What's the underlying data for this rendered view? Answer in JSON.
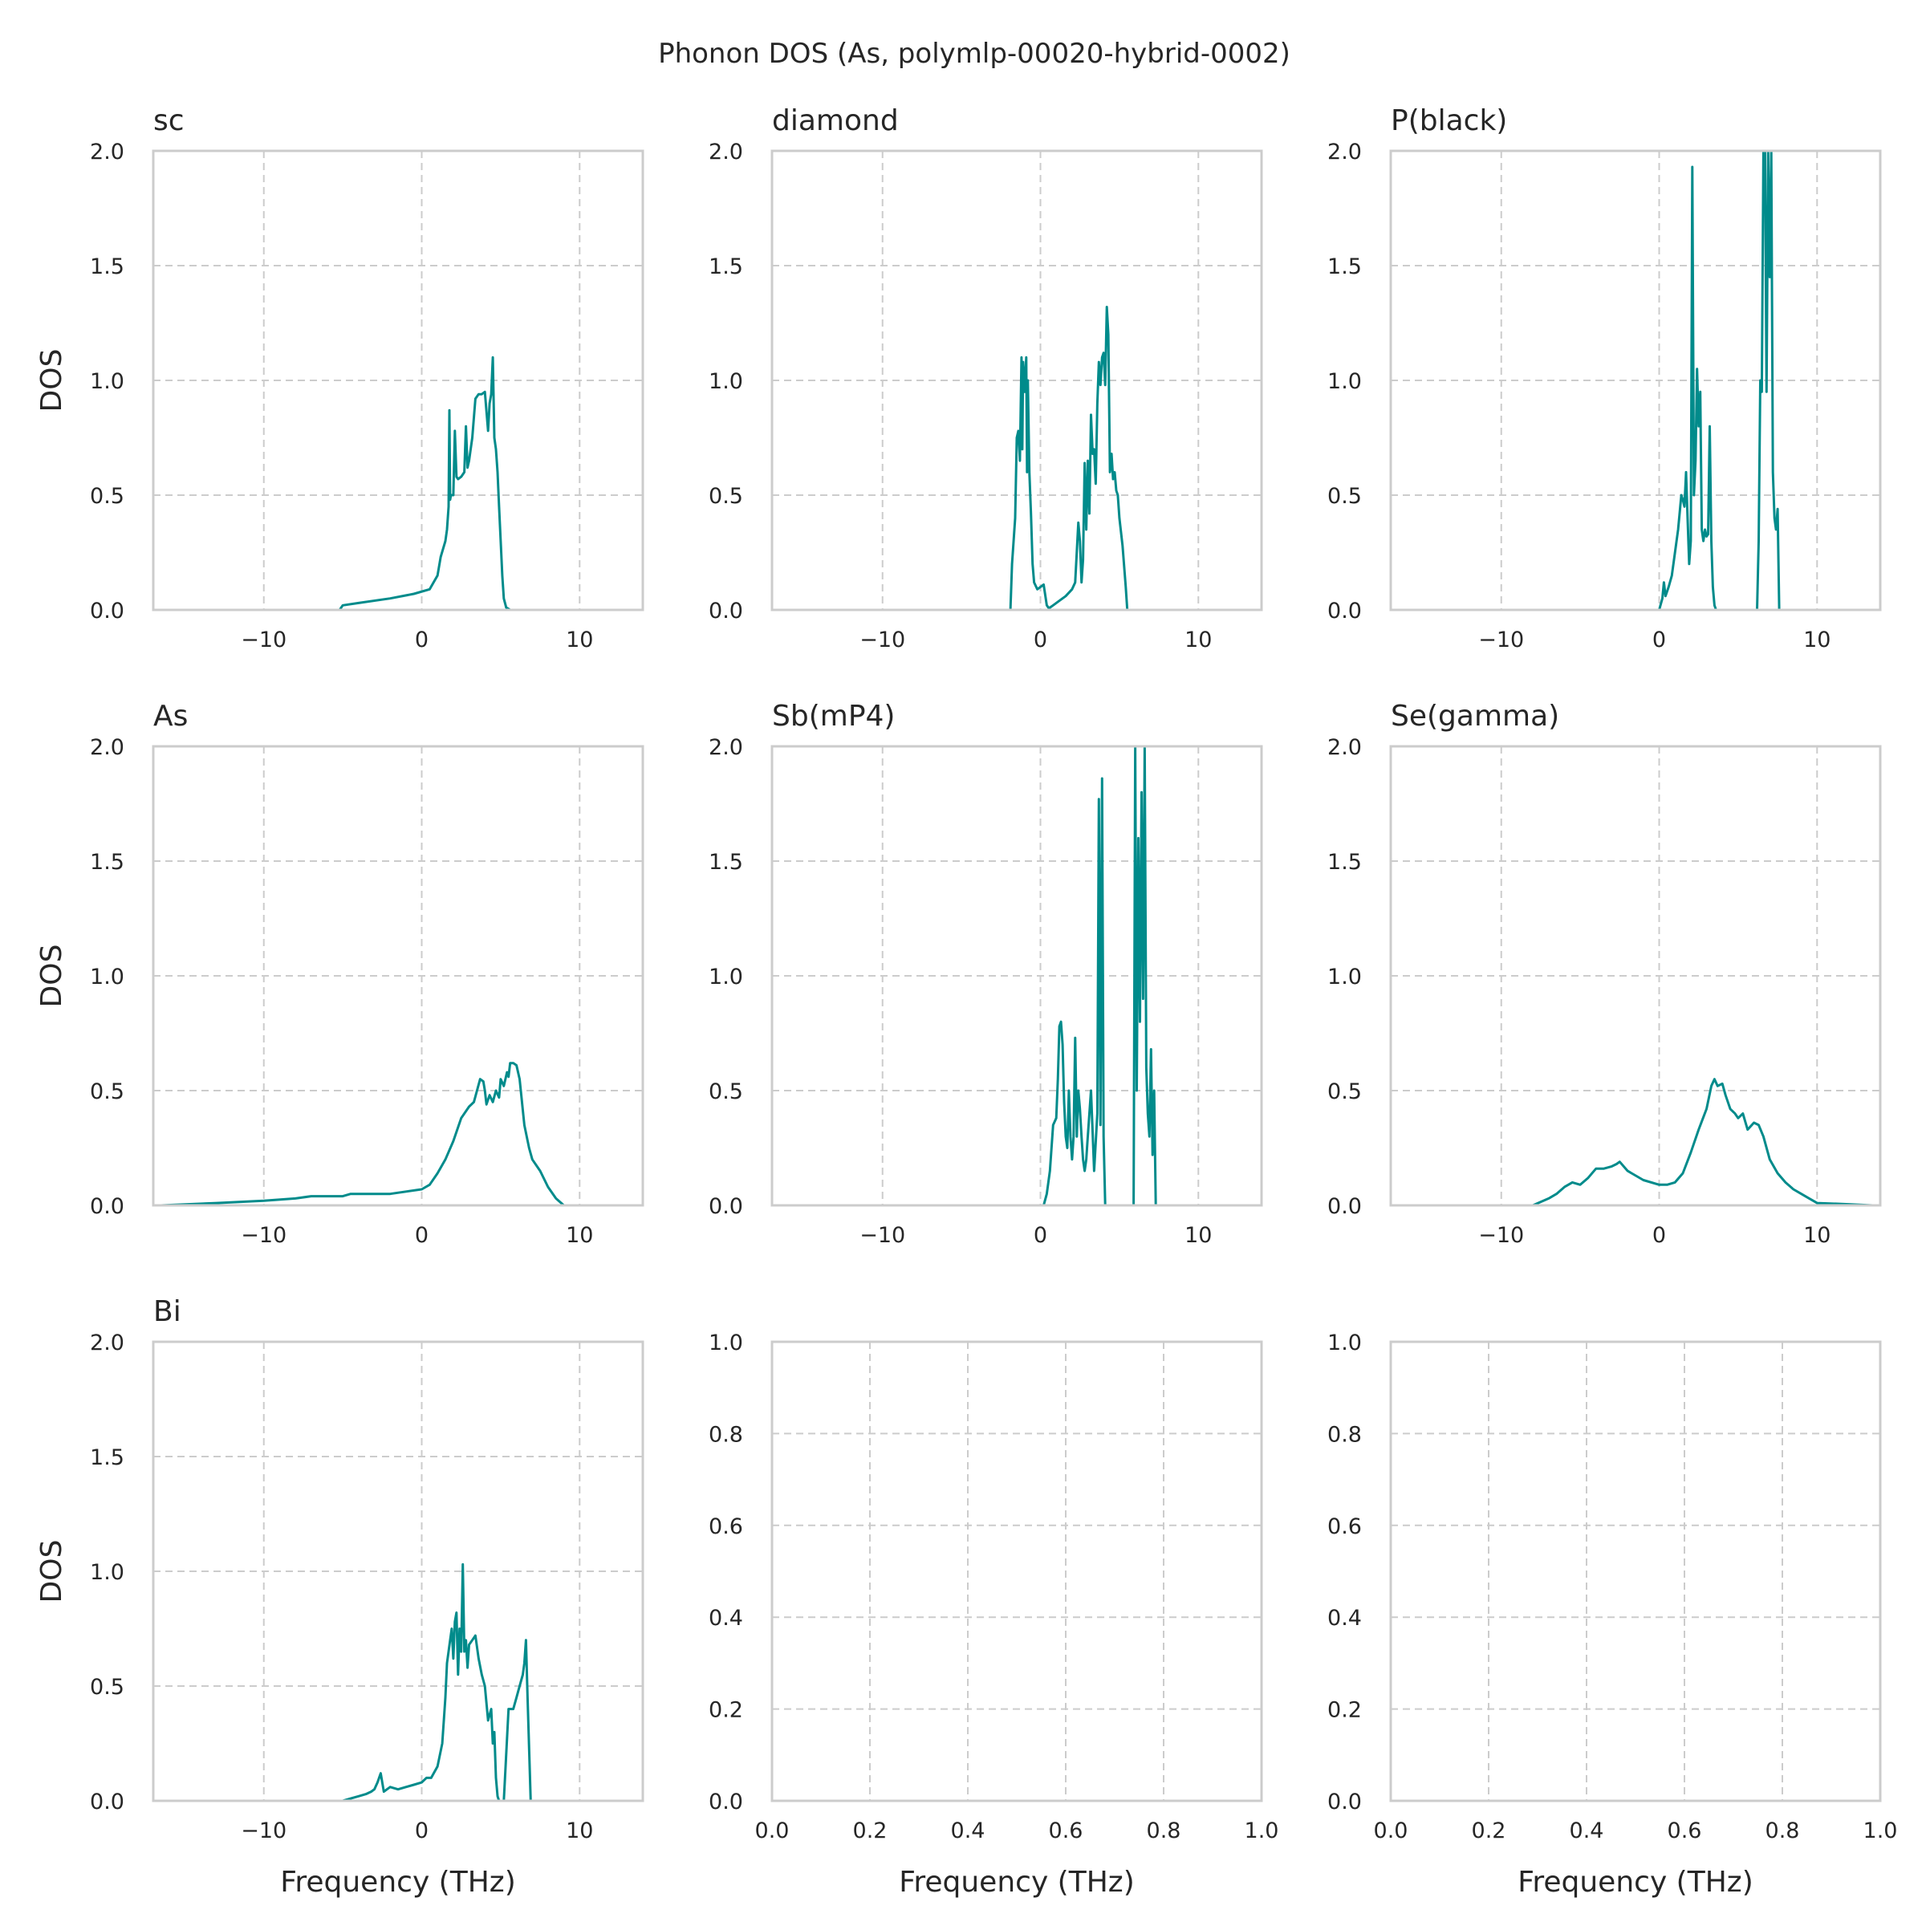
{
  "figure": {
    "title": "Phonon DOS (As, polymlp-00020-hybrid-0002)",
    "line_color": "#008b8b",
    "grid_color": "#cccccc",
    "frame_color": "#cccccc"
  },
  "chart_data": [
    {
      "type": "line",
      "title": "sc",
      "xlabel": "",
      "ylabel": "DOS",
      "xlim": [
        -17,
        14
      ],
      "ylim": [
        0,
        2.0
      ],
      "xticks": [
        -10,
        0,
        10
      ],
      "xtick_labels": [
        "−10",
        "0",
        "10"
      ],
      "yticks": [
        0,
        0.5,
        1.0,
        1.5,
        2.0
      ],
      "ytick_labels": [
        "0.0",
        "0.5",
        "1.0",
        "1.5",
        "2.0"
      ],
      "grid": true,
      "series": [
        {
          "x": [
            -6.2,
            -5.2,
            -5.0,
            -4.0,
            -2.0,
            -0.5,
            0.5,
            1.0,
            1.2,
            1.5,
            1.6,
            1.7,
            1.75,
            1.8,
            1.85,
            2.0,
            2.1,
            2.2,
            2.3,
            2.5,
            2.7,
            2.8,
            2.9,
            3.0,
            3.2,
            3.4,
            3.6,
            3.8,
            4.0,
            4.2,
            4.3,
            4.4,
            4.5,
            4.6,
            4.7,
            4.8,
            4.9,
            5.0,
            5.1,
            5.2,
            5.35,
            5.6,
            6.5
          ],
          "y": [
            0.0,
            0.0,
            0.02,
            0.03,
            0.05,
            0.07,
            0.09,
            0.15,
            0.23,
            0.3,
            0.35,
            0.45,
            0.87,
            0.48,
            0.5,
            0.5,
            0.78,
            0.58,
            0.57,
            0.58,
            0.6,
            0.8,
            0.62,
            0.65,
            0.75,
            0.92,
            0.94,
            0.94,
            0.95,
            0.78,
            0.9,
            0.94,
            1.1,
            0.75,
            0.7,
            0.6,
            0.45,
            0.3,
            0.15,
            0.05,
            0.01,
            0.0,
            0.0
          ]
        }
      ]
    },
    {
      "type": "line",
      "title": "diamond",
      "xlabel": "",
      "ylabel": "",
      "xlim": [
        -17,
        14
      ],
      "ylim": [
        0,
        2.0
      ],
      "xticks": [
        -10,
        0,
        10
      ],
      "xtick_labels": [
        "−10",
        "0",
        "10"
      ],
      "yticks": [
        0,
        0.5,
        1.0,
        1.5,
        2.0
      ],
      "ytick_labels": [
        "0.0",
        "0.5",
        "1.0",
        "1.5",
        "2.0"
      ],
      "grid": true,
      "series": [
        {
          "x": [
            -2.5,
            -1.9,
            -1.8,
            -1.6,
            -1.5,
            -1.4,
            -1.3,
            -1.2,
            -1.15,
            -1.1,
            -1.0,
            -0.9,
            -0.85,
            -0.8,
            -0.7,
            -0.6,
            -0.5,
            -0.4,
            -0.2,
            0.0,
            0.2,
            0.4,
            0.5,
            0.6,
            0.8,
            1.2,
            1.6,
            2.0,
            2.2,
            2.4,
            2.5,
            2.6,
            2.7,
            2.8,
            2.9,
            3.0,
            3.1,
            3.2,
            3.3,
            3.4,
            3.5,
            3.6,
            3.7,
            3.8,
            3.9,
            4.0,
            4.1,
            4.2,
            4.3,
            4.4,
            4.5,
            4.6,
            4.7,
            4.8,
            4.9,
            5.0,
            5.2,
            5.4,
            5.5,
            6.0
          ],
          "y": [
            0.0,
            0.0,
            0.2,
            0.4,
            0.75,
            0.78,
            0.65,
            1.1,
            0.7,
            1.08,
            0.95,
            1.1,
            0.6,
            1.0,
            0.6,
            0.42,
            0.2,
            0.12,
            0.09,
            0.1,
            0.11,
            0.02,
            0.01,
            0.01,
            0.02,
            0.04,
            0.06,
            0.09,
            0.12,
            0.38,
            0.3,
            0.12,
            0.22,
            0.64,
            0.35,
            0.65,
            0.42,
            0.85,
            0.68,
            0.7,
            0.55,
            0.9,
            1.08,
            0.98,
            1.1,
            1.12,
            0.98,
            1.32,
            1.2,
            0.6,
            0.68,
            0.57,
            0.6,
            0.52,
            0.5,
            0.4,
            0.28,
            0.1,
            0.0,
            0.0
          ]
        }
      ]
    },
    {
      "type": "line",
      "title": "P(black)",
      "xlabel": "",
      "ylabel": "",
      "xlim": [
        -17,
        14
      ],
      "ylim": [
        0,
        2.0
      ],
      "xticks": [
        -10,
        0,
        10
      ],
      "xtick_labels": [
        "−10",
        "0",
        "10"
      ],
      "yticks": [
        0,
        0.5,
        1.0,
        1.5,
        2.0
      ],
      "ytick_labels": [
        "0.0",
        "0.5",
        "1.0",
        "1.5",
        "2.0"
      ],
      "grid": true,
      "series": [
        {
          "x": [
            -0.5,
            0.0,
            0.2,
            0.3,
            0.4,
            0.6,
            0.8,
            1.0,
            1.2,
            1.4,
            1.5,
            1.6,
            1.7,
            1.8,
            1.9,
            2.0,
            2.1,
            2.2,
            2.3,
            2.4,
            2.5,
            2.6,
            2.7,
            2.8,
            2.9,
            3.0,
            3.1,
            3.2,
            3.3,
            3.4,
            3.5,
            3.6,
            3.7,
            3.8,
            4.0,
            6.0,
            6.1,
            6.2,
            6.3,
            6.4,
            6.5,
            6.6,
            6.7,
            6.8,
            6.9,
            7.0,
            7.1,
            7.2,
            7.3,
            7.4,
            7.5,
            7.6,
            8.0
          ],
          "y": [
            0.0,
            0.0,
            0.05,
            0.12,
            0.06,
            0.1,
            0.15,
            0.25,
            0.35,
            0.5,
            0.48,
            0.45,
            0.6,
            0.4,
            0.2,
            0.3,
            1.93,
            0.5,
            0.65,
            1.05,
            0.8,
            0.95,
            0.35,
            0.3,
            0.35,
            0.32,
            0.33,
            0.8,
            0.3,
            0.1,
            0.02,
            0.0,
            0.0,
            0.0,
            0.0,
            0.0,
            0.0,
            0.0,
            0.3,
            1.0,
            0.95,
            2.0,
            2.0,
            0.95,
            2.0,
            1.45,
            2.0,
            0.6,
            0.4,
            0.35,
            0.44,
            0.0,
            0.0
          ]
        }
      ]
    },
    {
      "type": "line",
      "title": "As",
      "xlabel": "",
      "ylabel": "DOS",
      "xlim": [
        -17,
        14
      ],
      "ylim": [
        0,
        2.0
      ],
      "xticks": [
        -10,
        0,
        10
      ],
      "xtick_labels": [
        "−10",
        "0",
        "10"
      ],
      "yticks": [
        0,
        0.5,
        1.0,
        1.5,
        2.0
      ],
      "ytick_labels": [
        "0.0",
        "0.5",
        "1.0",
        "1.5",
        "2.0"
      ],
      "grid": true,
      "series": [
        {
          "x": [
            -16.5,
            -13.0,
            -10.0,
            -8.0,
            -7.0,
            -5.0,
            -4.5,
            -4.0,
            -2.0,
            0.0,
            0.5,
            1.0,
            1.5,
            2.0,
            2.5,
            3.0,
            3.3,
            3.5,
            3.7,
            3.9,
            4.0,
            4.1,
            4.3,
            4.5,
            4.7,
            4.9,
            5.0,
            5.2,
            5.4,
            5.5,
            5.6,
            5.8,
            6.0,
            6.2,
            6.5,
            6.8,
            7.0,
            7.5,
            8.0,
            8.5,
            9.0,
            11.0
          ],
          "y": [
            0.0,
            0.01,
            0.02,
            0.03,
            0.04,
            0.04,
            0.05,
            0.05,
            0.05,
            0.07,
            0.09,
            0.14,
            0.2,
            0.28,
            0.38,
            0.43,
            0.45,
            0.5,
            0.55,
            0.54,
            0.5,
            0.44,
            0.48,
            0.45,
            0.5,
            0.47,
            0.55,
            0.52,
            0.58,
            0.56,
            0.62,
            0.62,
            0.61,
            0.55,
            0.35,
            0.25,
            0.2,
            0.15,
            0.08,
            0.03,
            0.0,
            0.0
          ]
        }
      ]
    },
    {
      "type": "line",
      "title": "Sb(mP4)",
      "xlabel": "",
      "ylabel": "",
      "xlim": [
        -17,
        14
      ],
      "ylim": [
        0,
        2.0
      ],
      "xticks": [
        -10,
        0,
        10
      ],
      "xtick_labels": [
        "−10",
        "0",
        "10"
      ],
      "yticks": [
        0,
        0.5,
        1.0,
        1.5,
        2.0
      ],
      "ytick_labels": [
        "0.0",
        "0.5",
        "1.0",
        "1.5",
        "2.0"
      ],
      "grid": true,
      "series": [
        {
          "x": [
            -0.2,
            0.2,
            0.4,
            0.6,
            0.8,
            1.0,
            1.1,
            1.2,
            1.3,
            1.4,
            1.5,
            1.6,
            1.7,
            1.8,
            1.9,
            2.0,
            2.1,
            2.2,
            2.3,
            2.4,
            2.5,
            2.6,
            2.7,
            2.8,
            2.9,
            3.0,
            3.2,
            3.4,
            3.6,
            3.7,
            3.8,
            3.9,
            4.0,
            4.1,
            4.2,
            5.8,
            5.9,
            6.0,
            6.1,
            6.2,
            6.3,
            6.4,
            6.5,
            6.6,
            6.7,
            6.8,
            6.9,
            7.0,
            7.1,
            7.2,
            7.3,
            7.5
          ],
          "y": [
            0.0,
            0.0,
            0.05,
            0.15,
            0.35,
            0.38,
            0.55,
            0.78,
            0.8,
            0.7,
            0.45,
            0.3,
            0.25,
            0.5,
            0.3,
            0.2,
            0.3,
            0.73,
            0.3,
            0.5,
            0.42,
            0.3,
            0.2,
            0.15,
            0.2,
            0.3,
            0.5,
            0.15,
            0.4,
            1.77,
            0.35,
            1.86,
            0.3,
            0.0,
            0.0,
            0.0,
            0.0,
            2.0,
            0.5,
            1.6,
            0.8,
            1.8,
            0.9,
            2.0,
            0.6,
            0.4,
            0.3,
            0.68,
            0.22,
            0.5,
            0.0,
            0.0
          ]
        }
      ]
    },
    {
      "type": "line",
      "title": "Se(gamma)",
      "xlabel": "",
      "ylabel": "",
      "xlim": [
        -17,
        14
      ],
      "ylim": [
        0,
        2.0
      ],
      "xticks": [
        -10,
        0,
        10
      ],
      "xtick_labels": [
        "−10",
        "0",
        "10"
      ],
      "yticks": [
        0,
        0.5,
        1.0,
        1.5,
        2.0
      ],
      "ytick_labels": [
        "0.0",
        "0.5",
        "1.0",
        "1.5",
        "2.0"
      ],
      "grid": true,
      "series": [
        {
          "x": [
            -10.0,
            -9.0,
            -8.0,
            -7.0,
            -6.5,
            -6.0,
            -5.5,
            -5.0,
            -4.5,
            -4.0,
            -3.5,
            -3.0,
            -2.7,
            -2.5,
            -2.0,
            -1.0,
            0.0,
            0.5,
            1.0,
            1.5,
            2.0,
            2.5,
            3.0,
            3.3,
            3.5,
            3.7,
            4.0,
            4.2,
            4.5,
            4.8,
            5.0,
            5.3,
            5.6,
            6.0,
            6.3,
            6.6,
            7.0,
            7.5,
            8.0,
            8.5,
            9.0,
            9.5,
            10.0,
            12.0,
            13.5
          ],
          "y": [
            0.0,
            0.0,
            0.0,
            0.03,
            0.05,
            0.08,
            0.1,
            0.09,
            0.12,
            0.16,
            0.16,
            0.17,
            0.18,
            0.19,
            0.15,
            0.11,
            0.09,
            0.09,
            0.1,
            0.14,
            0.23,
            0.33,
            0.42,
            0.52,
            0.55,
            0.52,
            0.53,
            0.48,
            0.42,
            0.4,
            0.38,
            0.4,
            0.33,
            0.36,
            0.35,
            0.3,
            0.2,
            0.14,
            0.1,
            0.07,
            0.05,
            0.03,
            0.01,
            0.005,
            0.0
          ]
        }
      ]
    },
    {
      "type": "line",
      "title": "Bi",
      "xlabel": "Frequency (THz)",
      "ylabel": "DOS",
      "xlim": [
        -17,
        14
      ],
      "ylim": [
        0,
        2.0
      ],
      "xticks": [
        -10,
        0,
        10
      ],
      "xtick_labels": [
        "−10",
        "0",
        "10"
      ],
      "yticks": [
        0,
        0.5,
        1.0,
        1.5,
        2.0
      ],
      "ytick_labels": [
        "0.0",
        "0.5",
        "1.0",
        "1.5",
        "2.0"
      ],
      "grid": true,
      "series": [
        {
          "x": [
            -6.0,
            -5.0,
            -4.5,
            -4.0,
            -3.5,
            -3.2,
            -3.0,
            -2.8,
            -2.6,
            -2.4,
            -2.2,
            -2.0,
            -1.5,
            -1.0,
            -0.5,
            0.0,
            0.3,
            0.6,
            1.0,
            1.3,
            1.5,
            1.6,
            1.8,
            1.9,
            2.0,
            2.1,
            2.2,
            2.3,
            2.4,
            2.5,
            2.6,
            2.7,
            2.8,
            2.9,
            3.0,
            3.2,
            3.4,
            3.6,
            3.8,
            4.0,
            4.2,
            4.4,
            4.5,
            4.6,
            4.7,
            4.8,
            4.9,
            5.0,
            5.2,
            5.5,
            5.8,
            6.0,
            6.2,
            6.4,
            6.5,
            6.6,
            6.7,
            6.9,
            7.0,
            8.0
          ],
          "y": [
            0.0,
            0.0,
            0.01,
            0.02,
            0.03,
            0.04,
            0.05,
            0.08,
            0.12,
            0.04,
            0.05,
            0.06,
            0.05,
            0.06,
            0.07,
            0.08,
            0.1,
            0.1,
            0.15,
            0.25,
            0.45,
            0.6,
            0.7,
            0.75,
            0.62,
            0.78,
            0.82,
            0.55,
            0.75,
            0.65,
            1.03,
            0.65,
            0.7,
            0.58,
            0.68,
            0.7,
            0.72,
            0.62,
            0.55,
            0.5,
            0.35,
            0.4,
            0.25,
            0.3,
            0.1,
            0.02,
            0.0,
            0.0,
            0.0,
            0.4,
            0.4,
            0.45,
            0.5,
            0.55,
            0.6,
            0.7,
            0.45,
            0.0,
            0.0,
            0.0
          ]
        }
      ]
    },
    {
      "type": "line",
      "title": "",
      "xlabel": "Frequency (THz)",
      "ylabel": "",
      "xlim": [
        0,
        1
      ],
      "ylim": [
        0,
        1
      ],
      "xticks": [
        0,
        0.2,
        0.4,
        0.6,
        0.8,
        1.0
      ],
      "xtick_labels": [
        "0.0",
        "0.2",
        "0.4",
        "0.6",
        "0.8",
        "1.0"
      ],
      "yticks": [
        0,
        0.2,
        0.4,
        0.6,
        0.8,
        1.0
      ],
      "ytick_labels": [
        "0.0",
        "0.2",
        "0.4",
        "0.6",
        "0.8",
        "1.0"
      ],
      "grid": true,
      "series": []
    },
    {
      "type": "line",
      "title": "",
      "xlabel": "Frequency (THz)",
      "ylabel": "",
      "xlim": [
        0,
        1
      ],
      "ylim": [
        0,
        1
      ],
      "xticks": [
        0,
        0.2,
        0.4,
        0.6,
        0.8,
        1.0
      ],
      "xtick_labels": [
        "0.0",
        "0.2",
        "0.4",
        "0.6",
        "0.8",
        "1.0"
      ],
      "yticks": [
        0,
        0.2,
        0.4,
        0.6,
        0.8,
        1.0
      ],
      "ytick_labels": [
        "0.0",
        "0.2",
        "0.4",
        "0.6",
        "0.8",
        "1.0"
      ],
      "grid": true,
      "series": []
    }
  ]
}
